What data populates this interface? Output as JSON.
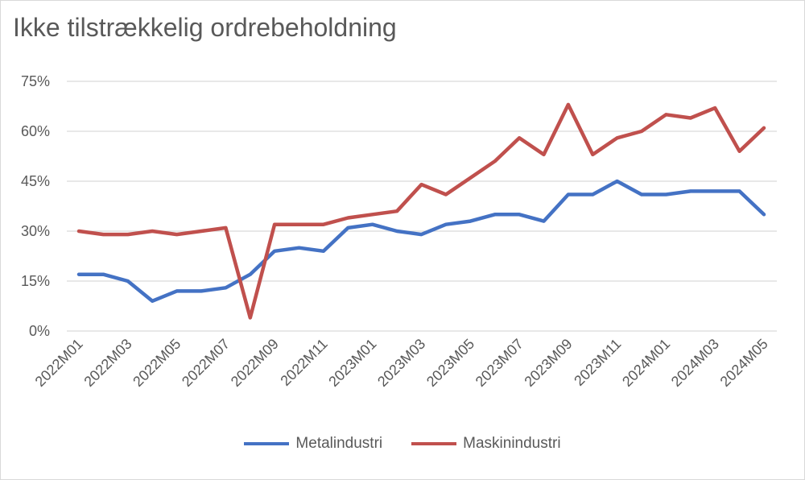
{
  "chart_data": {
    "type": "line",
    "title": "Ikke tilstrækkelig ordrebeholdning",
    "x": [
      "2022M01",
      "2022M02",
      "2022M03",
      "2022M04",
      "2022M05",
      "2022M06",
      "2022M07",
      "2022M08",
      "2022M09",
      "2022M10",
      "2022M11",
      "2022M12",
      "2023M01",
      "2023M02",
      "2023M03",
      "2023M04",
      "2023M05",
      "2023M06",
      "2023M07",
      "2023M08",
      "2023M09",
      "2023M10",
      "2023M11",
      "2023M12",
      "2024M01",
      "2024M02",
      "2024M03",
      "2024M04",
      "2024M05"
    ],
    "x_tick_labels": [
      "2022M01",
      "2022M03",
      "2022M05",
      "2022M07",
      "2022M09",
      "2022M11",
      "2023M01",
      "2023M03",
      "2023M05",
      "2023M07",
      "2023M09",
      "2023M11",
      "2024M01",
      "2024M03",
      "2024M05"
    ],
    "y_ticks": [
      0,
      15,
      30,
      45,
      60,
      75
    ],
    "y_tick_labels": [
      "0%",
      "15%",
      "30%",
      "45%",
      "60%",
      "75%"
    ],
    "ylim": [
      0,
      75
    ],
    "grid": true,
    "legend_position": "bottom",
    "series": [
      {
        "name": "Metalindustri",
        "color": "#4472c4",
        "values": [
          17,
          17,
          15,
          9,
          12,
          12,
          13,
          17,
          24,
          25,
          24,
          31,
          32,
          30,
          29,
          32,
          33,
          35,
          35,
          33,
          41,
          41,
          45,
          41,
          41,
          42,
          42,
          42,
          35
        ]
      },
      {
        "name": "Maskinindustri",
        "color": "#c0504d",
        "values": [
          30,
          29,
          29,
          30,
          29,
          30,
          31,
          4,
          32,
          32,
          32,
          34,
          35,
          36,
          44,
          41,
          46,
          51,
          58,
          53,
          68,
          53,
          58,
          60,
          65,
          64,
          67,
          54,
          61
        ]
      }
    ]
  }
}
